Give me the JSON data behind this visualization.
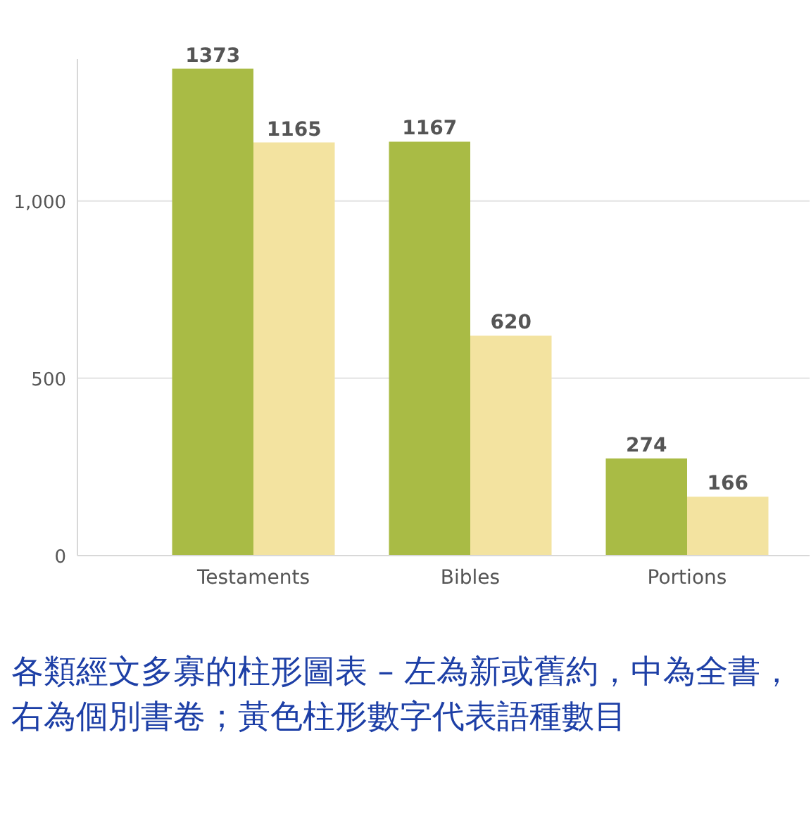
{
  "chart_data": {
    "type": "bar",
    "categories": [
      "Testaments",
      "Bibles",
      "Portions"
    ],
    "series": [
      {
        "color": "#a9bb45",
        "values": [
          1373,
          1167,
          274
        ]
      },
      {
        "color": "#f3e3a0",
        "values": [
          1165,
          620,
          166
        ]
      }
    ],
    "ylim": [
      0,
      1400
    ],
    "yticks": [
      0,
      500,
      {
        "value": 1000,
        "label": "1,000"
      }
    ],
    "grid": "y",
    "data_labels": true,
    "annotations": [
      "各類經文多寡的柱形圖表 – 左為新或舊約，中為全書，右為個別書卷；黃色柱形數字代表語種數目"
    ]
  }
}
